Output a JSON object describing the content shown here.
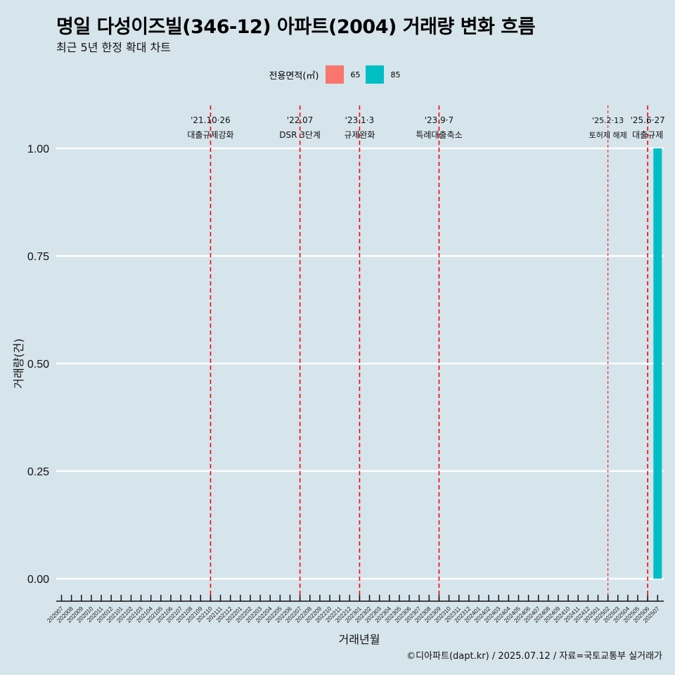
{
  "title": "명일 다성이즈빌(346-12) 아파트(2004) 거래량 변화 흐름",
  "subtitle": "최근 5년 한정 확대 차트",
  "caption": "©디아파트(dapt.kr) / 2025.07.12 / 자료=국토교통부 실거래가",
  "legend": {
    "title": "전용면적(㎡)",
    "items": [
      {
        "label": "65",
        "color": "#f8766d"
      },
      {
        "label": "85",
        "color": "#00bfc4"
      }
    ]
  },
  "chart_data": {
    "type": "bar",
    "title": "명일 다성이즈빌(346-12) 아파트(2004) 거래량 변화 흐름",
    "subtitle": "최근 5년 한정 확대 차트",
    "xlabel": "거래년월",
    "ylabel": "거래량(건)",
    "ylim": [
      0,
      1
    ],
    "yticks": [
      "0.00",
      "0.25",
      "0.50",
      "0.75",
      "1.00"
    ],
    "grid": "horizontal major lines",
    "legend_position": "top",
    "categories": [
      "202007",
      "202008",
      "202009",
      "202010",
      "202011",
      "202012",
      "202101",
      "202102",
      "202103",
      "202104",
      "202105",
      "202106",
      "202107",
      "202108",
      "202109",
      "202110",
      "202111",
      "202112",
      "202201",
      "202202",
      "202203",
      "202204",
      "202205",
      "202206",
      "202207",
      "202208",
      "202209",
      "202210",
      "202211",
      "202212",
      "202301",
      "202302",
      "202303",
      "202304",
      "202305",
      "202306",
      "202307",
      "202308",
      "202309",
      "202310",
      "202311",
      "202312",
      "202401",
      "202402",
      "202403",
      "202404",
      "202405",
      "202406",
      "202407",
      "202408",
      "202409",
      "202410",
      "202411",
      "202412",
      "202501",
      "202502",
      "202503",
      "202504",
      "202505",
      "202506",
      "202507"
    ],
    "series": [
      {
        "name": "65",
        "color": "#f8766d",
        "values": {}
      },
      {
        "name": "85",
        "color": "#00bfc4",
        "values": {
          "202507": 1
        }
      }
    ],
    "events": [
      {
        "x": 15.0,
        "date": "'21.10·26",
        "label": "대출규제강화",
        "style": "dashed-thick"
      },
      {
        "x": 24.0,
        "date": "'22.07",
        "label": "DSR 3단계",
        "style": "dashed-thick"
      },
      {
        "x": 30.0,
        "date": "'23.1·3",
        "label": "규제완화",
        "style": "dashed-thick"
      },
      {
        "x": 38.0,
        "date": "'23.9·7",
        "label": "특례대출축소",
        "style": "dashed-thick"
      },
      {
        "x": 55.0,
        "date": "'25.2·13",
        "label": "토허제 해제",
        "style": "dashed-thin"
      },
      {
        "x": 59.0,
        "date": "'25.6·27",
        "label": "대출규제",
        "style": "dashed-thick"
      }
    ]
  }
}
